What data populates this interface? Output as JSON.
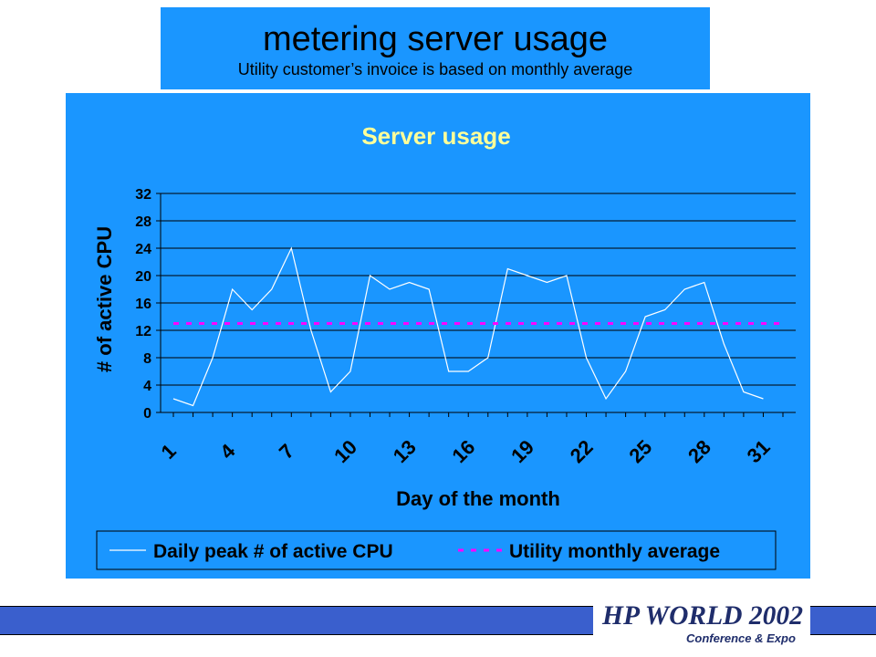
{
  "slide": {
    "title": "metering server usage",
    "subtitle": "Utility customer’s invoice is based on monthly average"
  },
  "logo": {
    "brand": "HP WORLD 2002",
    "tagline": "Conference & Expo"
  },
  "colors": {
    "background_panel": "#1a96ff",
    "title_text": "#ffff99",
    "series_line": "#ffffff",
    "average_line": "#ff00ff",
    "footer": "#3a5fcd",
    "logo_navy": "#1f2d6b"
  },
  "chart_data": {
    "type": "line",
    "title": "Server usage",
    "xlabel": "Day of the month",
    "ylabel": "# of active CPU",
    "ylim": [
      0,
      32
    ],
    "yticks": [
      0,
      4,
      8,
      12,
      16,
      20,
      24,
      28,
      32
    ],
    "xticks": [
      1,
      4,
      7,
      10,
      13,
      16,
      19,
      22,
      25,
      28,
      31
    ],
    "x": [
      1,
      2,
      3,
      4,
      5,
      6,
      7,
      8,
      9,
      10,
      11,
      12,
      13,
      14,
      15,
      16,
      17,
      18,
      19,
      20,
      21,
      22,
      23,
      24,
      25,
      26,
      27,
      28,
      29,
      30,
      31,
      32
    ],
    "grid": "horizontal",
    "legend_position": "bottom",
    "series": [
      {
        "name": "Daily peak # of active CPU",
        "style": "solid",
        "values": [
          2,
          1,
          8,
          18,
          15,
          18,
          24,
          12,
          3,
          6,
          20,
          18,
          19,
          18,
          6,
          6,
          8,
          21,
          20,
          19,
          20,
          8,
          2,
          6,
          14,
          15,
          18,
          19,
          10,
          3,
          2,
          null
        ]
      },
      {
        "name": "Utility monthly average",
        "style": "dashed",
        "values": [
          13,
          13,
          13,
          13,
          13,
          13,
          13,
          13,
          13,
          13,
          13,
          13,
          13,
          13,
          13,
          13,
          13,
          13,
          13,
          13,
          13,
          13,
          13,
          13,
          13,
          13,
          13,
          13,
          13,
          13,
          13,
          13
        ]
      }
    ]
  }
}
